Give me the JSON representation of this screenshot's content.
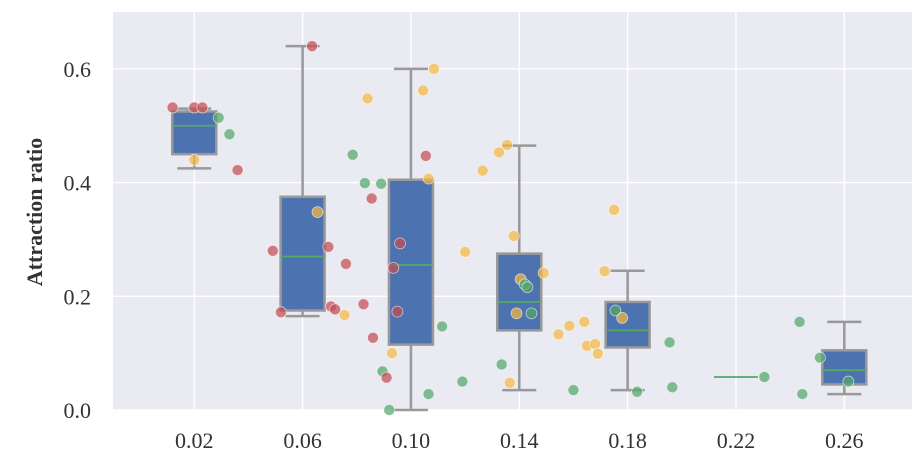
{
  "chart_data": {
    "type": "box",
    "title": "",
    "xlabel": "",
    "ylabel": "Attraction ratio",
    "categories": [
      "0.02",
      "0.06",
      "0.10",
      "0.14",
      "0.18",
      "0.22",
      "0.26"
    ],
    "x_ticks": [
      0.02,
      0.06,
      0.1,
      0.14,
      0.18,
      0.22,
      0.26
    ],
    "x_tick_labels": [
      "0.02",
      "0.06",
      "0.10",
      "0.14",
      "0.18",
      "0.22",
      "0.26"
    ],
    "xlim": [
      -0.01,
      0.285
    ],
    "ylim": [
      0.0,
      0.7
    ],
    "y_ticks": [
      0.0,
      0.2,
      0.4,
      0.6
    ],
    "y_tick_labels": [
      "0.0",
      "0.2",
      "0.4",
      "0.6"
    ],
    "grid": true,
    "legend": "none",
    "colors": {
      "background": "#e9eaf2",
      "grid": "#ffffff",
      "box_fill": "#4c72b0",
      "box_edge": "#999999",
      "median": "#55a868",
      "red": "#c44e52",
      "orange": "#f4b942",
      "green": "#55a868"
    },
    "boxes": [
      {
        "x": 0.02,
        "whisker_low": 0.425,
        "q1": 0.45,
        "median": 0.5,
        "q3": 0.525,
        "whisker_high": 0.53
      },
      {
        "x": 0.06,
        "whisker_low": 0.165,
        "q1": 0.175,
        "median": 0.27,
        "q3": 0.375,
        "whisker_high": 0.64
      },
      {
        "x": 0.1,
        "whisker_low": 0.0,
        "q1": 0.115,
        "median": 0.255,
        "q3": 0.405,
        "whisker_high": 0.6
      },
      {
        "x": 0.14,
        "whisker_low": 0.035,
        "q1": 0.14,
        "median": 0.19,
        "q3": 0.275,
        "whisker_high": 0.465
      },
      {
        "x": 0.18,
        "whisker_low": 0.035,
        "q1": 0.11,
        "median": 0.14,
        "q3": 0.19,
        "whisker_high": 0.245
      },
      {
        "x": 0.22,
        "whisker_low": 0.058,
        "q1": 0.058,
        "median": 0.058,
        "q3": 0.058,
        "whisker_high": 0.058
      },
      {
        "x": 0.26,
        "whisker_low": 0.028,
        "q1": 0.045,
        "median": 0.07,
        "q3": 0.105,
        "whisker_high": 0.155
      }
    ],
    "points": [
      {
        "x": 0.012,
        "y": 0.532,
        "color": "red"
      },
      {
        "x": 0.02,
        "y": 0.532,
        "color": "red"
      },
      {
        "x": 0.02,
        "y": 0.44,
        "color": "orange"
      },
      {
        "x": 0.023,
        "y": 0.532,
        "color": "red"
      },
      {
        "x": 0.029,
        "y": 0.514,
        "color": "green"
      },
      {
        "x": 0.033,
        "y": 0.485,
        "color": "green"
      },
      {
        "x": 0.036,
        "y": 0.422,
        "color": "red"
      },
      {
        "x": 0.049,
        "y": 0.28,
        "color": "red"
      },
      {
        "x": 0.052,
        "y": 0.172,
        "color": "red"
      },
      {
        "x": 0.0635,
        "y": 0.64,
        "color": "red"
      },
      {
        "x": 0.0655,
        "y": 0.348,
        "color": "orange"
      },
      {
        "x": 0.0695,
        "y": 0.287,
        "color": "red"
      },
      {
        "x": 0.0705,
        "y": 0.182,
        "color": "red"
      },
      {
        "x": 0.072,
        "y": 0.177,
        "color": "red"
      },
      {
        "x": 0.0755,
        "y": 0.167,
        "color": "orange"
      },
      {
        "x": 0.076,
        "y": 0.257,
        "color": "red"
      },
      {
        "x": 0.0785,
        "y": 0.449,
        "color": "green"
      },
      {
        "x": 0.083,
        "y": 0.399,
        "color": "green"
      },
      {
        "x": 0.0825,
        "y": 0.186,
        "color": "red"
      },
      {
        "x": 0.084,
        "y": 0.548,
        "color": "orange"
      },
      {
        "x": 0.0855,
        "y": 0.372,
        "color": "red"
      },
      {
        "x": 0.086,
        "y": 0.127,
        "color": "red"
      },
      {
        "x": 0.089,
        "y": 0.398,
        "color": "green"
      },
      {
        "x": 0.0895,
        "y": 0.068,
        "color": "green"
      },
      {
        "x": 0.091,
        "y": 0.057,
        "color": "red"
      },
      {
        "x": 0.092,
        "y": 0.0,
        "color": "green"
      },
      {
        "x": 0.093,
        "y": 0.1,
        "color": "orange"
      },
      {
        "x": 0.0935,
        "y": 0.25,
        "color": "red"
      },
      {
        "x": 0.095,
        "y": 0.173,
        "color": "red"
      },
      {
        "x": 0.096,
        "y": 0.293,
        "color": "red"
      },
      {
        "x": 0.1045,
        "y": 0.562,
        "color": "orange"
      },
      {
        "x": 0.1055,
        "y": 0.447,
        "color": "red"
      },
      {
        "x": 0.1065,
        "y": 0.407,
        "color": "orange"
      },
      {
        "x": 0.1065,
        "y": 0.028,
        "color": "green"
      },
      {
        "x": 0.1085,
        "y": 0.6,
        "color": "orange"
      },
      {
        "x": 0.1115,
        "y": 0.147,
        "color": "green"
      },
      {
        "x": 0.119,
        "y": 0.05,
        "color": "green"
      },
      {
        "x": 0.12,
        "y": 0.278,
        "color": "orange"
      },
      {
        "x": 0.1265,
        "y": 0.421,
        "color": "orange"
      },
      {
        "x": 0.1325,
        "y": 0.453,
        "color": "orange"
      },
      {
        "x": 0.1335,
        "y": 0.08,
        "color": "green"
      },
      {
        "x": 0.1355,
        "y": 0.466,
        "color": "orange"
      },
      {
        "x": 0.1365,
        "y": 0.048,
        "color": "orange"
      },
      {
        "x": 0.138,
        "y": 0.306,
        "color": "orange"
      },
      {
        "x": 0.139,
        "y": 0.17,
        "color": "orange"
      },
      {
        "x": 0.1405,
        "y": 0.23,
        "color": "orange"
      },
      {
        "x": 0.142,
        "y": 0.221,
        "color": "green"
      },
      {
        "x": 0.143,
        "y": 0.216,
        "color": "green"
      },
      {
        "x": 0.1445,
        "y": 0.17,
        "color": "green"
      },
      {
        "x": 0.149,
        "y": 0.241,
        "color": "orange"
      },
      {
        "x": 0.1545,
        "y": 0.133,
        "color": "orange"
      },
      {
        "x": 0.1585,
        "y": 0.148,
        "color": "orange"
      },
      {
        "x": 0.16,
        "y": 0.035,
        "color": "green"
      },
      {
        "x": 0.164,
        "y": 0.155,
        "color": "orange"
      },
      {
        "x": 0.165,
        "y": 0.113,
        "color": "orange"
      },
      {
        "x": 0.168,
        "y": 0.116,
        "color": "orange"
      },
      {
        "x": 0.169,
        "y": 0.099,
        "color": "orange"
      },
      {
        "x": 0.1715,
        "y": 0.244,
        "color": "orange"
      },
      {
        "x": 0.175,
        "y": 0.352,
        "color": "orange"
      },
      {
        "x": 0.1755,
        "y": 0.175,
        "color": "green"
      },
      {
        "x": 0.178,
        "y": 0.162,
        "color": "orange"
      },
      {
        "x": 0.1835,
        "y": 0.032,
        "color": "green"
      },
      {
        "x": 0.1955,
        "y": 0.119,
        "color": "green"
      },
      {
        "x": 0.1965,
        "y": 0.04,
        "color": "green"
      },
      {
        "x": 0.2305,
        "y": 0.058,
        "color": "green"
      },
      {
        "x": 0.2435,
        "y": 0.155,
        "color": "green"
      },
      {
        "x": 0.2445,
        "y": 0.028,
        "color": "green"
      },
      {
        "x": 0.251,
        "y": 0.092,
        "color": "green"
      },
      {
        "x": 0.2615,
        "y": 0.05,
        "color": "green"
      }
    ]
  }
}
